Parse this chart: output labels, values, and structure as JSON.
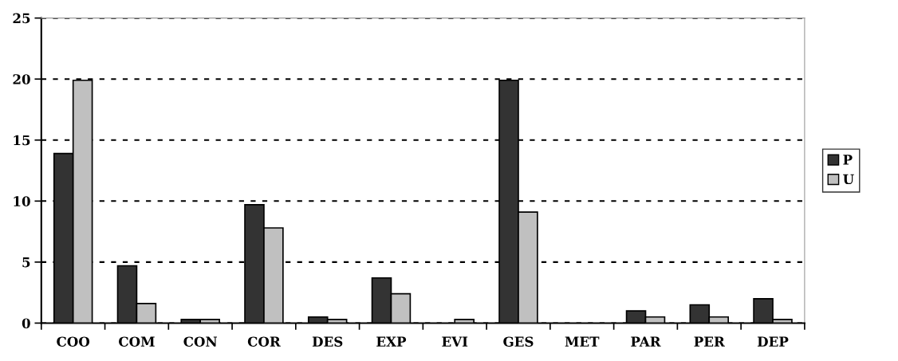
{
  "chart_data": {
    "type": "bar",
    "categories": [
      "COO",
      "COM",
      "CON",
      "COR",
      "DES",
      "EXP",
      "EVI",
      "GES",
      "MET",
      "PAR",
      "PER",
      "DEP"
    ],
    "series": [
      {
        "name": "P",
        "color": "#333333",
        "values": [
          13.9,
          4.7,
          0.3,
          9.7,
          0.5,
          3.7,
          0,
          19.9,
          0,
          1.0,
          1.5,
          2.0
        ]
      },
      {
        "name": "U",
        "color": "#c0c0c0",
        "values": [
          19.9,
          1.6,
          0.3,
          7.8,
          0.3,
          2.4,
          0.3,
          9.1,
          0,
          0.5,
          0.5,
          0.3
        ]
      }
    ],
    "ylim": [
      0,
      25
    ],
    "yticks": [
      0,
      5,
      10,
      15,
      20,
      25
    ],
    "grid": "y",
    "legend": "right"
  }
}
